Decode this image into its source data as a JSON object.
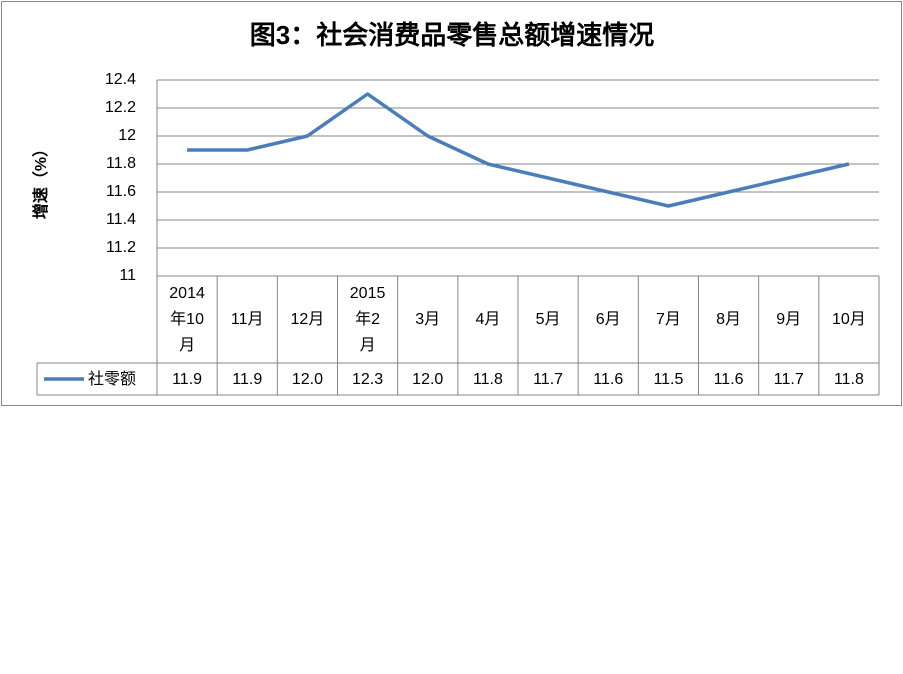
{
  "chart_data": {
    "type": "line",
    "title": "图3：社会消费品零售总额增速情况",
    "y_label": "增速（%）",
    "categories": [
      "2014年10月",
      "11月",
      "12月",
      "2015年2月",
      "3月",
      "4月",
      "5月",
      "6月",
      "7月",
      "8月",
      "9月",
      "10月"
    ],
    "series": [
      {
        "name": "社零额",
        "color": "#4a7ebb",
        "values": [
          11.9,
          11.9,
          12.0,
          12.3,
          12.0,
          11.8,
          11.7,
          11.6,
          11.5,
          11.6,
          11.7,
          11.8
        ],
        "value_labels": [
          "11.9",
          "11.9",
          "12.0",
          "12.3",
          "12.0",
          "11.8",
          "11.7",
          "11.6",
          "11.5",
          "11.6",
          "11.7",
          "11.8"
        ]
      }
    ],
    "ylim": [
      11,
      12.4
    ],
    "yticks": [
      11,
      11.2,
      11.4,
      11.6,
      11.8,
      12,
      12.2,
      12.4
    ],
    "grid": true,
    "data_table": true
  }
}
